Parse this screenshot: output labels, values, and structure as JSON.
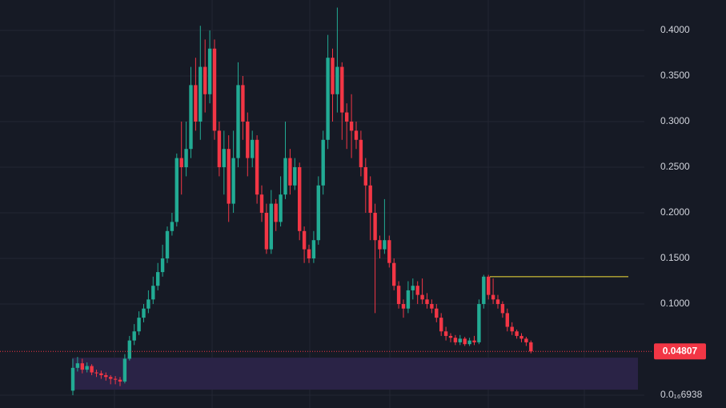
{
  "chart_data": {
    "type": "candlestick",
    "open": [
      0.005,
      0.03,
      0.035,
      0.028,
      0.032,
      0.025,
      0.024,
      0.022,
      0.02,
      0.018,
      0.017,
      0.015,
      0.04,
      0.06,
      0.07,
      0.085,
      0.095,
      0.105,
      0.12,
      0.135,
      0.15,
      0.18,
      0.19,
      0.26,
      0.25,
      0.27,
      0.34,
      0.3,
      0.36,
      0.33,
      0.38,
      0.29,
      0.25,
      0.27,
      0.21,
      0.26,
      0.34,
      0.3,
      0.26,
      0.28,
      0.22,
      0.2,
      0.16,
      0.21,
      0.19,
      0.22,
      0.26,
      0.23,
      0.25,
      0.18,
      0.16,
      0.15,
      0.17,
      0.23,
      0.28,
      0.37,
      0.33,
      0.36,
      0.31,
      0.3,
      0.29,
      0.28,
      0.25,
      0.23,
      0.2,
      0.17,
      0.16,
      0.17,
      0.145,
      0.12,
      0.1,
      0.095,
      0.115,
      0.12,
      0.11,
      0.105,
      0.1,
      0.095,
      0.085,
      0.07,
      0.065,
      0.063,
      0.058,
      0.062,
      0.056,
      0.06,
      0.058,
      0.1,
      0.13,
      0.11,
      0.105,
      0.1,
      0.09,
      0.075,
      0.07,
      0.065,
      0.062,
      0.058
    ],
    "high": [
      0.04,
      0.042,
      0.04,
      0.036,
      0.034,
      0.028,
      0.027,
      0.025,
      0.022,
      0.021,
      0.02,
      0.045,
      0.065,
      0.078,
      0.092,
      0.1,
      0.115,
      0.13,
      0.145,
      0.165,
      0.185,
      0.2,
      0.265,
      0.3,
      0.3,
      0.36,
      0.37,
      0.405,
      0.39,
      0.4,
      0.39,
      0.3,
      0.29,
      0.285,
      0.29,
      0.365,
      0.35,
      0.31,
      0.29,
      0.285,
      0.23,
      0.21,
      0.225,
      0.215,
      0.24,
      0.3,
      0.27,
      0.26,
      0.255,
      0.185,
      0.165,
      0.18,
      0.24,
      0.29,
      0.395,
      0.38,
      0.425,
      0.365,
      0.32,
      0.33,
      0.3,
      0.29,
      0.26,
      0.24,
      0.21,
      0.175,
      0.215,
      0.175,
      0.15,
      0.125,
      0.105,
      0.125,
      0.128,
      0.125,
      0.128,
      0.112,
      0.105,
      0.1,
      0.09,
      0.075,
      0.068,
      0.066,
      0.066,
      0.064,
      0.063,
      0.065,
      0.105,
      0.132,
      0.132,
      0.128,
      0.11,
      0.103,
      0.095,
      0.08,
      0.072,
      0.068,
      0.064,
      0.06
    ],
    "low": [
      0.0,
      0.026,
      0.024,
      0.025,
      0.022,
      0.02,
      0.018,
      0.016,
      0.012,
      0.012,
      0.01,
      0.013,
      0.038,
      0.055,
      0.066,
      0.08,
      0.09,
      0.1,
      0.115,
      0.13,
      0.145,
      0.175,
      0.185,
      0.22,
      0.24,
      0.26,
      0.29,
      0.28,
      0.31,
      0.32,
      0.28,
      0.24,
      0.22,
      0.19,
      0.2,
      0.25,
      0.28,
      0.24,
      0.25,
      0.21,
      0.19,
      0.155,
      0.155,
      0.18,
      0.185,
      0.215,
      0.22,
      0.225,
      0.17,
      0.145,
      0.145,
      0.145,
      0.165,
      0.22,
      0.27,
      0.3,
      0.31,
      0.28,
      0.27,
      0.26,
      0.27,
      0.24,
      0.2,
      0.17,
      0.09,
      0.15,
      0.155,
      0.14,
      0.115,
      0.095,
      0.085,
      0.09,
      0.105,
      0.1,
      0.1,
      0.095,
      0.09,
      0.08,
      0.065,
      0.06,
      0.058,
      0.055,
      0.055,
      0.054,
      0.054,
      0.055,
      0.056,
      0.095,
      0.105,
      0.1,
      0.095,
      0.085,
      0.07,
      0.066,
      0.062,
      0.058,
      0.054,
      0.046
    ],
    "close": [
      0.03,
      0.035,
      0.028,
      0.032,
      0.025,
      0.024,
      0.022,
      0.02,
      0.018,
      0.017,
      0.015,
      0.04,
      0.06,
      0.07,
      0.085,
      0.095,
      0.105,
      0.12,
      0.135,
      0.15,
      0.18,
      0.19,
      0.26,
      0.25,
      0.27,
      0.34,
      0.3,
      0.36,
      0.33,
      0.38,
      0.29,
      0.25,
      0.27,
      0.21,
      0.26,
      0.34,
      0.3,
      0.26,
      0.28,
      0.22,
      0.2,
      0.16,
      0.21,
      0.19,
      0.22,
      0.26,
      0.23,
      0.25,
      0.18,
      0.16,
      0.15,
      0.17,
      0.23,
      0.28,
      0.37,
      0.33,
      0.36,
      0.31,
      0.3,
      0.29,
      0.28,
      0.25,
      0.23,
      0.2,
      0.17,
      0.16,
      0.17,
      0.145,
      0.12,
      0.1,
      0.095,
      0.115,
      0.12,
      0.11,
      0.105,
      0.1,
      0.095,
      0.085,
      0.07,
      0.065,
      0.063,
      0.058,
      0.062,
      0.056,
      0.06,
      0.058,
      0.1,
      0.13,
      0.11,
      0.105,
      0.1,
      0.09,
      0.075,
      0.07,
      0.065,
      0.062,
      0.058,
      0.04807
    ],
    "up_color": "#22ab94",
    "down_color": "#f23645",
    "ylim": [
      -0.014,
      0.4333
    ],
    "yticks": [
      {
        "value": 6.938e-18,
        "label": "0.0₁₆6938"
      },
      {
        "value": 0.1,
        "label": "0.1000"
      },
      {
        "value": 0.15,
        "label": "0.1500"
      },
      {
        "value": 0.2,
        "label": "0.2000"
      },
      {
        "value": 0.25,
        "label": "0.2500"
      },
      {
        "value": 0.3,
        "label": "0.3000"
      },
      {
        "value": 0.35,
        "label": "0.3500"
      },
      {
        "value": 0.4,
        "label": "0.4000"
      }
    ],
    "grid": true,
    "last_price": 0.04807,
    "horizontal_line": {
      "value": 0.13,
      "color": "#f5e23a"
    },
    "zone": {
      "low": 0.0061,
      "high": 0.0412,
      "color": "#2a2346"
    }
  }
}
